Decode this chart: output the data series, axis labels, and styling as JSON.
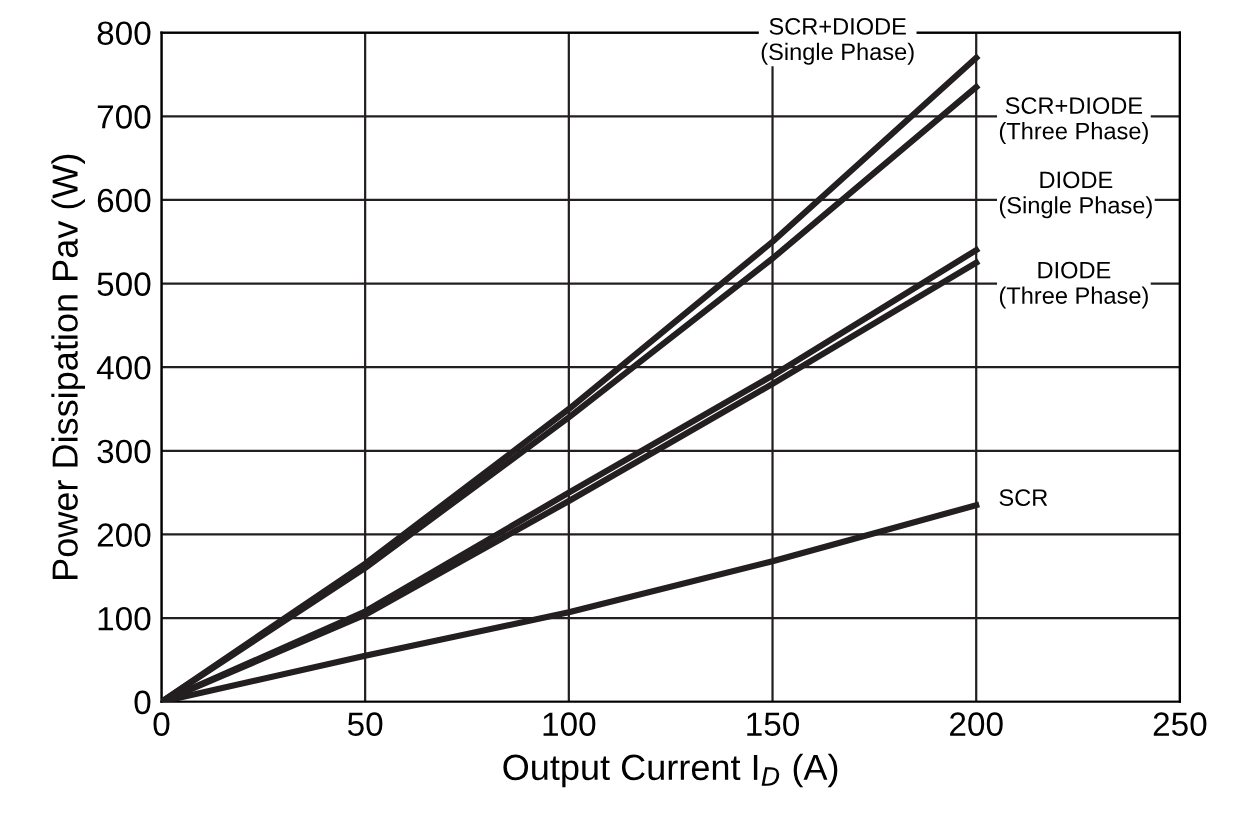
{
  "chart_data": {
    "type": "line",
    "xlabel": "Output Current I$_{D}$ (A)",
    "ylabel": "Power Dissipation Pav (W)",
    "x": [
      0,
      50,
      100,
      150,
      200
    ],
    "series": [
      {
        "name": "SCR+DIODE\n(Single Phase)",
        "color": "#231f20",
        "values": [
          0,
          165,
          350,
          550,
          770
        ]
      },
      {
        "name": "SCR+DIODE\n(Three Phase)",
        "color": "#231f20",
        "values": [
          0,
          160,
          340,
          530,
          735
        ]
      },
      {
        "name": "DIODE\n(Single Phase)",
        "color": "#231f20",
        "values": [
          0,
          108,
          250,
          390,
          540
        ]
      },
      {
        "name": "DIODE\n(Three Phase)",
        "color": "#231f20",
        "values": [
          0,
          104,
          240,
          380,
          525
        ]
      },
      {
        "name": "SCR",
        "color": "#231f20",
        "values": [
          0,
          55,
          107,
          168,
          235
        ]
      }
    ],
    "xlim": [
      0,
      250
    ],
    "xticks": [
      0,
      50,
      100,
      150,
      200,
      250
    ],
    "ylim": [
      0,
      800
    ],
    "yticks": [
      0,
      100,
      200,
      300,
      400,
      500,
      600,
      700,
      800
    ],
    "grid": true,
    "legend": false,
    "marker": "none",
    "line_style": "solid"
  }
}
